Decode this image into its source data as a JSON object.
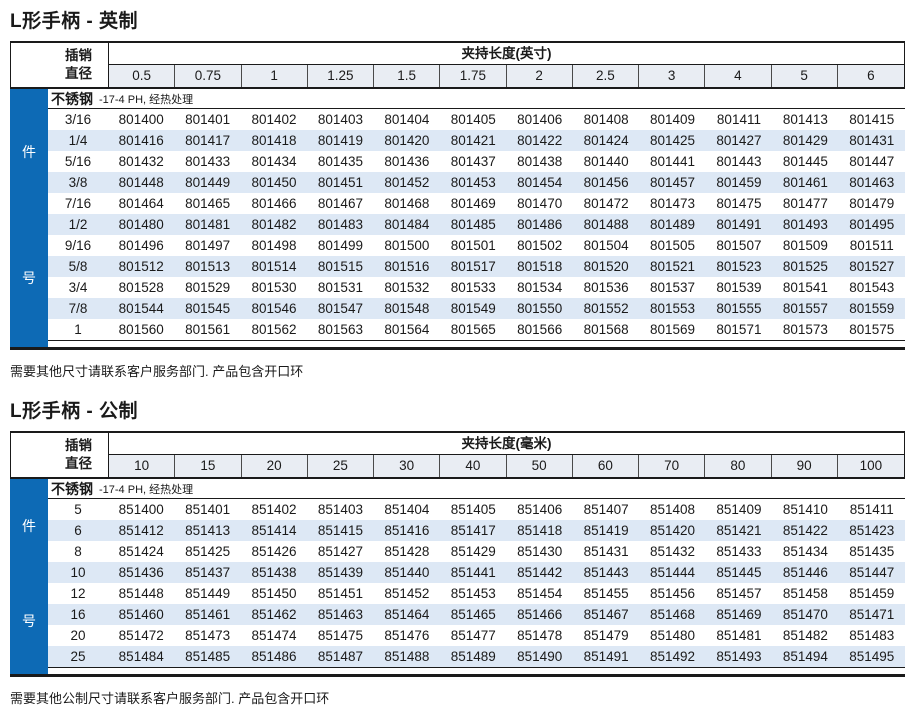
{
  "colors": {
    "sidebar_blue": "#0d6ab5",
    "row_stripe": "#dde8f5",
    "header_fill": "#e9edf3"
  },
  "tables": [
    {
      "title": "L形手柄 - 英制",
      "pin_header_line1": "插销",
      "pin_header_line2": "直径",
      "span_header": "夹持长度(英寸)",
      "columns": [
        "0.5",
        "0.75",
        "1",
        "1.25",
        "1.5",
        "1.75",
        "2",
        "2.5",
        "3",
        "4",
        "5",
        "6"
      ],
      "material": "不锈钢",
      "material_note": "-17-4 PH, 经热处理",
      "side_label_top": "件",
      "side_label_bottom": "号",
      "rows": [
        {
          "size": "3/16",
          "parts": [
            "801400",
            "801401",
            "801402",
            "801403",
            "801404",
            "801405",
            "801406",
            "801408",
            "801409",
            "801411",
            "801413",
            "801415"
          ]
        },
        {
          "size": "1/4",
          "parts": [
            "801416",
            "801417",
            "801418",
            "801419",
            "801420",
            "801421",
            "801422",
            "801424",
            "801425",
            "801427",
            "801429",
            "801431"
          ]
        },
        {
          "size": "5/16",
          "parts": [
            "801432",
            "801433",
            "801434",
            "801435",
            "801436",
            "801437",
            "801438",
            "801440",
            "801441",
            "801443",
            "801445",
            "801447"
          ]
        },
        {
          "size": "3/8",
          "parts": [
            "801448",
            "801449",
            "801450",
            "801451",
            "801452",
            "801453",
            "801454",
            "801456",
            "801457",
            "801459",
            "801461",
            "801463"
          ]
        },
        {
          "size": "7/16",
          "parts": [
            "801464",
            "801465",
            "801466",
            "801467",
            "801468",
            "801469",
            "801470",
            "801472",
            "801473",
            "801475",
            "801477",
            "801479"
          ]
        },
        {
          "size": "1/2",
          "parts": [
            "801480",
            "801481",
            "801482",
            "801483",
            "801484",
            "801485",
            "801486",
            "801488",
            "801489",
            "801491",
            "801493",
            "801495"
          ]
        },
        {
          "size": "9/16",
          "parts": [
            "801496",
            "801497",
            "801498",
            "801499",
            "801500",
            "801501",
            "801502",
            "801504",
            "801505",
            "801507",
            "801509",
            "801511"
          ]
        },
        {
          "size": "5/8",
          "parts": [
            "801512",
            "801513",
            "801514",
            "801515",
            "801516",
            "801517",
            "801518",
            "801520",
            "801521",
            "801523",
            "801525",
            "801527"
          ]
        },
        {
          "size": "3/4",
          "parts": [
            "801528",
            "801529",
            "801530",
            "801531",
            "801532",
            "801533",
            "801534",
            "801536",
            "801537",
            "801539",
            "801541",
            "801543"
          ]
        },
        {
          "size": "7/8",
          "parts": [
            "801544",
            "801545",
            "801546",
            "801547",
            "801548",
            "801549",
            "801550",
            "801552",
            "801553",
            "801555",
            "801557",
            "801559"
          ]
        },
        {
          "size": "1",
          "parts": [
            "801560",
            "801561",
            "801562",
            "801563",
            "801564",
            "801565",
            "801566",
            "801568",
            "801569",
            "801571",
            "801573",
            "801575"
          ]
        }
      ],
      "footnote": "需要其他尺寸请联系客户服务部门.  产品包含开口环"
    },
    {
      "title": "L形手柄 - 公制",
      "pin_header_line1": "插销",
      "pin_header_line2": "直径",
      "span_header": "夹持长度(毫米)",
      "columns": [
        "10",
        "15",
        "20",
        "25",
        "30",
        "40",
        "50",
        "60",
        "70",
        "80",
        "90",
        "100"
      ],
      "material": "不锈钢",
      "material_note": "-17-4 PH, 经热处理",
      "side_label_top": "件",
      "side_label_bottom": "号",
      "rows": [
        {
          "size": "5",
          "parts": [
            "851400",
            "851401",
            "851402",
            "851403",
            "851404",
            "851405",
            "851406",
            "851407",
            "851408",
            "851409",
            "851410",
            "851411"
          ]
        },
        {
          "size": "6",
          "parts": [
            "851412",
            "851413",
            "851414",
            "851415",
            "851416",
            "851417",
            "851418",
            "851419",
            "851420",
            "851421",
            "851422",
            "851423"
          ]
        },
        {
          "size": "8",
          "parts": [
            "851424",
            "851425",
            "851426",
            "851427",
            "851428",
            "851429",
            "851430",
            "851431",
            "851432",
            "851433",
            "851434",
            "851435"
          ]
        },
        {
          "size": "10",
          "parts": [
            "851436",
            "851437",
            "851438",
            "851439",
            "851440",
            "851441",
            "851442",
            "851443",
            "851444",
            "851445",
            "851446",
            "851447"
          ]
        },
        {
          "size": "12",
          "parts": [
            "851448",
            "851449",
            "851450",
            "851451",
            "851452",
            "851453",
            "851454",
            "851455",
            "851456",
            "851457",
            "851458",
            "851459"
          ]
        },
        {
          "size": "16",
          "parts": [
            "851460",
            "851461",
            "851462",
            "851463",
            "851464",
            "851465",
            "851466",
            "851467",
            "851468",
            "851469",
            "851470",
            "851471"
          ]
        },
        {
          "size": "20",
          "parts": [
            "851472",
            "851473",
            "851474",
            "851475",
            "851476",
            "851477",
            "851478",
            "851479",
            "851480",
            "851481",
            "851482",
            "851483"
          ]
        },
        {
          "size": "25",
          "parts": [
            "851484",
            "851485",
            "851486",
            "851487",
            "851488",
            "851489",
            "851490",
            "851491",
            "851492",
            "851493",
            "851494",
            "851495"
          ]
        }
      ],
      "footnote": "需要其他公制尺寸请联系客户服务部门.  产品包含开口环"
    }
  ]
}
